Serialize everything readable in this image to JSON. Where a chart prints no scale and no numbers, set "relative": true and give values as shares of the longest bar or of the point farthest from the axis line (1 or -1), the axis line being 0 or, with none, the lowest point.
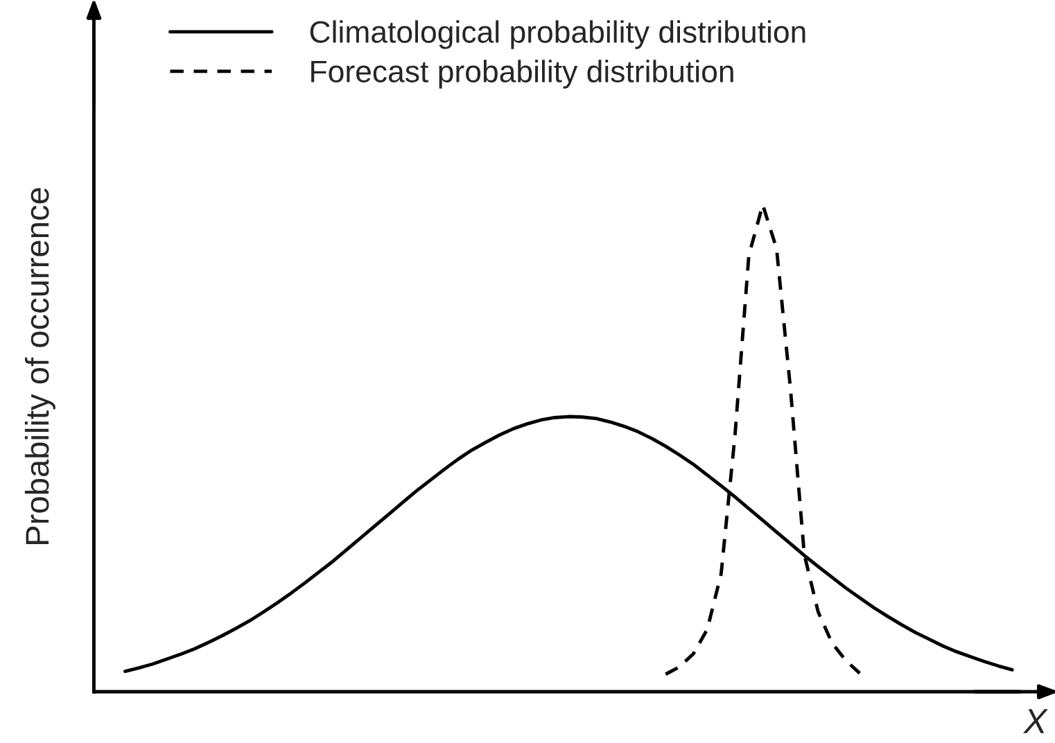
{
  "chart_data": {
    "type": "line",
    "relative": true,
    "ylabel": "Probability of occurrence",
    "xlabel": "X",
    "legend": "top",
    "categories": [
      null,
      null,
      null,
      null,
      null,
      null,
      null,
      null,
      null,
      null,
      null,
      null,
      null,
      null,
      null,
      null,
      null,
      null,
      null,
      null,
      null,
      null,
      null,
      null,
      null,
      null,
      null,
      null,
      null,
      null,
      null,
      null,
      null,
      null,
      null,
      null,
      null,
      null,
      null,
      null,
      null,
      null,
      null,
      null,
      null,
      null,
      null,
      null,
      null,
      null,
      null,
      null,
      null,
      null,
      null,
      null,
      null,
      null,
      null,
      null,
      null,
      null,
      null,
      null,
      null
    ],
    "series": [
      {
        "name": "Climatological probability distribution",
        "color": "#000000",
        "line_style": "solid",
        "values": [
          0.042,
          0.049,
          0.057,
          0.067,
          0.077,
          0.088,
          0.101,
          0.115,
          0.13,
          0.146,
          0.164,
          0.183,
          0.203,
          0.224,
          0.246,
          0.268,
          0.292,
          0.316,
          0.34,
          0.364,
          0.388,
          0.412,
          0.434,
          0.456,
          0.477,
          0.496,
          0.512,
          0.527,
          0.54,
          0.55,
          0.558,
          0.563,
          0.565,
          0.564,
          0.561,
          0.554,
          0.545,
          0.534,
          0.52,
          0.504,
          0.486,
          0.467,
          0.445,
          0.423,
          0.4,
          0.376,
          0.352,
          0.328,
          0.304,
          0.28,
          0.257,
          0.235,
          0.213,
          0.193,
          0.173,
          0.155,
          0.138,
          0.122,
          0.108,
          0.094,
          0.082,
          0.072,
          0.062,
          0.053,
          0.045
        ]
      },
      {
        "name": "Forecast probability distribution",
        "color": "#000000",
        "line_style": "dashed",
        "values": [
          null,
          null,
          null,
          null,
          null,
          null,
          null,
          null,
          null,
          null,
          null,
          null,
          null,
          null,
          null,
          null,
          null,
          null,
          null,
          null,
          null,
          null,
          null,
          null,
          null,
          null,
          null,
          null,
          null,
          null,
          null,
          null,
          null,
          null,
          null,
          null,
          null,
          null,
          null,
          0.036,
          0.051,
          0.078,
          0.128,
          0.242,
          0.526,
          0.896,
          1.0,
          0.91,
          0.623,
          0.282,
          0.164,
          0.1,
          0.064,
          0.038,
          null,
          null,
          null,
          null,
          null,
          null,
          null,
          null,
          null,
          null,
          null
        ]
      }
    ]
  }
}
